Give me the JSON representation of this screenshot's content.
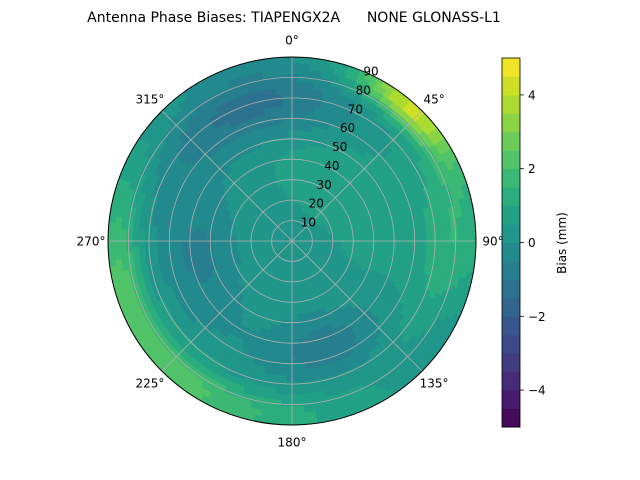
{
  "title": "Antenna Phase Biases: TIAPENGX2A      NONE GLONASS-L1",
  "chart_data": {
    "type": "heatmap",
    "projection": "polar",
    "title": "Antenna Phase Biases: TIAPENGX2A      NONE GLONASS-L1",
    "theta_direction": "clockwise",
    "theta_zero": "top",
    "azimuth_tick_labels": [
      "0°",
      "45°",
      "90°",
      "135°",
      "180°",
      "225°",
      "270°",
      "315°"
    ],
    "radial_ticks": [
      10,
      20,
      30,
      40,
      50,
      60,
      70,
      80,
      90
    ],
    "radial_range": [
      0,
      90
    ],
    "colorbar": {
      "label": "Bias (mm)",
      "range": [
        -5,
        5
      ],
      "levels": [
        -5,
        -4.5,
        -4,
        -3.5,
        -3,
        -2.5,
        -2,
        -1.5,
        -1,
        -0.5,
        0,
        0.5,
        1,
        1.5,
        2,
        2.5,
        3,
        3.5,
        4,
        4.5,
        5
      ],
      "tick_values": [
        -4,
        -2,
        0,
        2,
        4
      ],
      "tick_labels": [
        "−4",
        "−2",
        "0",
        "2",
        "4"
      ],
      "colormap": "viridis"
    },
    "grid": true,
    "z_approx_by_zenith_ring": [
      {
        "zenith": 10,
        "values_deg": [
          0,
          90,
          180,
          270
        ],
        "bias": [
          0.4,
          0.3,
          0.2,
          0.3
        ]
      },
      {
        "zenith": 30,
        "values_deg": [
          0,
          90,
          180,
          270
        ],
        "bias": [
          0.0,
          0.5,
          -0.2,
          0.2
        ]
      },
      {
        "zenith": 50,
        "values_deg": [
          0,
          90,
          180,
          270
        ],
        "bias": [
          0.8,
          1.0,
          0.2,
          0.5
        ]
      },
      {
        "zenith": 70,
        "values_deg": [
          0,
          90,
          180,
          270
        ],
        "bias": [
          -0.8,
          1.2,
          -0.5,
          0.8
        ]
      },
      {
        "zenith": 90,
        "values_deg": [
          0,
          45,
          90,
          135,
          180,
          225,
          270,
          315
        ],
        "bias": [
          0.5,
          3.8,
          -0.5,
          -0.5,
          0.2,
          2.5,
          2.6,
          0.3
        ]
      }
    ]
  }
}
